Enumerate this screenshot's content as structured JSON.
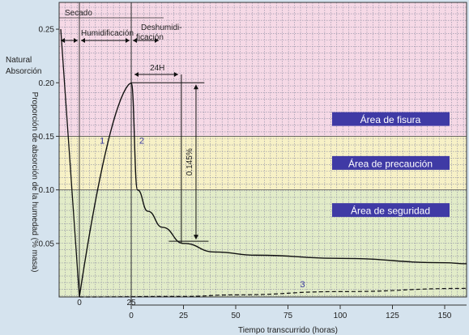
{
  "chart_data": {
    "type": "line",
    "xlabel": "Tiempo transcurrido (horas)",
    "ylabel": "Proporción de absorción de la humedad (% masa)",
    "x_ticks_lower": [
      "0",
      "25",
      "50",
      "75",
      "100",
      "125",
      "150"
    ],
    "x_ticks_upper": [
      "0",
      "25"
    ],
    "y_ticks": [
      "0.05",
      "0.10",
      "0.15",
      "0.20",
      "0.25"
    ],
    "ylim": [
      0,
      0.275
    ],
    "grid": true,
    "phases": {
      "drying": "Secado",
      "humidification": "Humidificación",
      "dehumidification": "Deshumidi-\nficación"
    },
    "annotations": {
      "natural": "Natural\nAbsorción",
      "interval": "24H",
      "drop": "0.145%"
    },
    "zones": [
      {
        "label": "Área de fisura",
        "y_range": [
          0.15,
          0.275
        ],
        "color": "#f6d9e6"
      },
      {
        "label": "Área de precaución",
        "y_range": [
          0.1,
          0.15
        ],
        "color": "#f7f1c6"
      },
      {
        "label": "Área de seguridad",
        "y_range": [
          0.0,
          0.1
        ],
        "color": "#e2ecc8"
      }
    ],
    "zone_label_color": "#3f3aa5",
    "series": [
      {
        "name": "1",
        "phase": "humidification",
        "x": [
          0,
          25
        ],
        "y": [
          0.0,
          0.2
        ]
      },
      {
        "name": "2",
        "phase": "dehumidification",
        "x": [
          0,
          3,
          8,
          15,
          25,
          40,
          60,
          100,
          150,
          160
        ],
        "y": [
          0.2,
          0.1,
          0.08,
          0.065,
          0.05,
          0.042,
          0.039,
          0.036,
          0.032,
          0.031
        ]
      },
      {
        "name": "3",
        "style": "dashed",
        "x": [
          0,
          25,
          50,
          100,
          160
        ],
        "y": [
          0.0,
          0.0005,
          0.002,
          0.005,
          0.008
        ]
      },
      {
        "name": "",
        "phase": "drying",
        "x": [
          -25,
          0
        ],
        "y": [
          0.25,
          0.0
        ]
      }
    ]
  }
}
